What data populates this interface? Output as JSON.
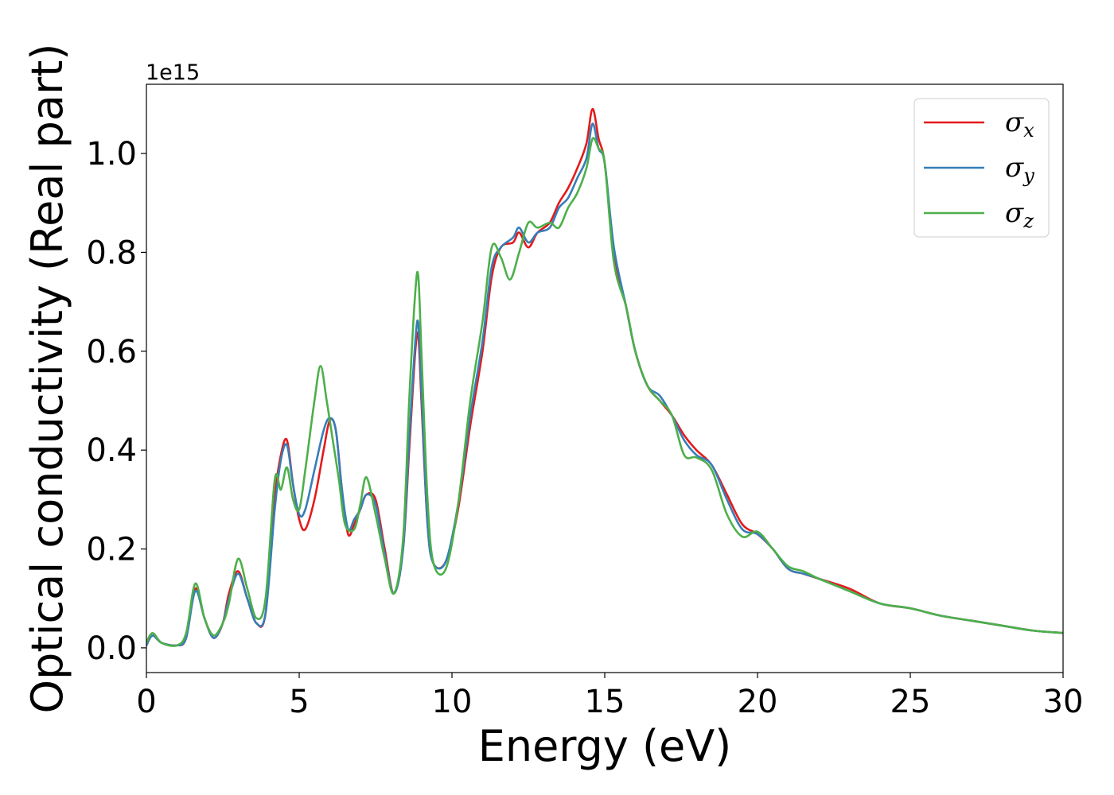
{
  "chart_data": {
    "type": "line",
    "title": "",
    "xlabel": "Energy (eV)",
    "ylabel": "Optical conductivity (Real part)",
    "y_offset_label": "1e15",
    "xlim": [
      0,
      30
    ],
    "ylim": [
      -0.05,
      1.14
    ],
    "xticks": [
      0,
      5,
      10,
      15,
      20,
      25,
      30
    ],
    "xtick_labels": [
      "0",
      "5",
      "10",
      "15",
      "20",
      "25",
      "30"
    ],
    "yticks": [
      0.0,
      0.2,
      0.4,
      0.6,
      0.8,
      1.0
    ],
    "ytick_labels": [
      "0.0",
      "0.2",
      "0.4",
      "0.6",
      "0.8",
      "1.0"
    ],
    "grid": false,
    "legend_position": "top-right",
    "series": [
      {
        "name": "σx",
        "legend_base": "σ",
        "legend_sub": "x",
        "color": "#e41a1c",
        "points": [
          [
            0,
            0.005
          ],
          [
            0.2,
            0.025
          ],
          [
            0.5,
            0.01
          ],
          [
            1.0,
            0.005
          ],
          [
            1.3,
            0.02
          ],
          [
            1.6,
            0.12
          ],
          [
            1.9,
            0.06
          ],
          [
            2.2,
            0.02
          ],
          [
            2.5,
            0.05
          ],
          [
            2.7,
            0.11
          ],
          [
            3.0,
            0.155
          ],
          [
            3.3,
            0.1
          ],
          [
            3.6,
            0.05
          ],
          [
            3.9,
            0.07
          ],
          [
            4.2,
            0.3
          ],
          [
            4.4,
            0.39
          ],
          [
            4.6,
            0.42
          ],
          [
            4.8,
            0.33
          ],
          [
            5.0,
            0.26
          ],
          [
            5.2,
            0.24
          ],
          [
            5.5,
            0.3
          ],
          [
            5.8,
            0.4
          ],
          [
            6.0,
            0.46
          ],
          [
            6.2,
            0.44
          ],
          [
            6.4,
            0.32
          ],
          [
            6.6,
            0.23
          ],
          [
            6.8,
            0.25
          ],
          [
            7.0,
            0.28
          ],
          [
            7.2,
            0.31
          ],
          [
            7.5,
            0.3
          ],
          [
            7.8,
            0.2
          ],
          [
            8.1,
            0.11
          ],
          [
            8.4,
            0.2
          ],
          [
            8.6,
            0.4
          ],
          [
            8.8,
            0.6
          ],
          [
            8.9,
            0.63
          ],
          [
            9.0,
            0.5
          ],
          [
            9.2,
            0.25
          ],
          [
            9.4,
            0.17
          ],
          [
            9.8,
            0.175
          ],
          [
            10.2,
            0.28
          ],
          [
            10.6,
            0.45
          ],
          [
            11.0,
            0.6
          ],
          [
            11.3,
            0.75
          ],
          [
            11.6,
            0.81
          ],
          [
            12.0,
            0.82
          ],
          [
            12.2,
            0.84
          ],
          [
            12.5,
            0.81
          ],
          [
            12.8,
            0.84
          ],
          [
            13.2,
            0.86
          ],
          [
            13.5,
            0.9
          ],
          [
            13.8,
            0.93
          ],
          [
            14.1,
            0.97
          ],
          [
            14.4,
            1.02
          ],
          [
            14.6,
            1.09
          ],
          [
            14.8,
            1.03
          ],
          [
            15.0,
            0.98
          ],
          [
            15.3,
            0.8
          ],
          [
            15.7,
            0.69
          ],
          [
            16.0,
            0.6
          ],
          [
            16.4,
            0.53
          ],
          [
            16.8,
            0.5
          ],
          [
            17.2,
            0.47
          ],
          [
            17.6,
            0.43
          ],
          [
            18.0,
            0.4
          ],
          [
            18.5,
            0.37
          ],
          [
            19.0,
            0.31
          ],
          [
            19.5,
            0.25
          ],
          [
            20.0,
            0.23
          ],
          [
            20.5,
            0.2
          ],
          [
            21.0,
            0.16
          ],
          [
            21.5,
            0.15
          ],
          [
            22.0,
            0.14
          ],
          [
            23.0,
            0.12
          ],
          [
            24.0,
            0.09
          ],
          [
            25.0,
            0.08
          ],
          [
            26.0,
            0.065
          ],
          [
            27.0,
            0.055
          ],
          [
            28.0,
            0.045
          ],
          [
            29.0,
            0.035
          ],
          [
            30.0,
            0.03
          ]
        ]
      },
      {
        "name": "σy",
        "legend_base": "σ",
        "legend_sub": "y",
        "color": "#377eb8",
        "points": [
          [
            0,
            0.005
          ],
          [
            0.2,
            0.025
          ],
          [
            0.5,
            0.01
          ],
          [
            1.0,
            0.005
          ],
          [
            1.3,
            0.02
          ],
          [
            1.6,
            0.115
          ],
          [
            1.9,
            0.06
          ],
          [
            2.2,
            0.02
          ],
          [
            2.5,
            0.05
          ],
          [
            2.7,
            0.1
          ],
          [
            3.0,
            0.15
          ],
          [
            3.3,
            0.1
          ],
          [
            3.6,
            0.05
          ],
          [
            3.9,
            0.07
          ],
          [
            4.2,
            0.28
          ],
          [
            4.4,
            0.38
          ],
          [
            4.6,
            0.41
          ],
          [
            4.8,
            0.33
          ],
          [
            5.0,
            0.27
          ],
          [
            5.2,
            0.28
          ],
          [
            5.5,
            0.36
          ],
          [
            5.8,
            0.44
          ],
          [
            6.0,
            0.465
          ],
          [
            6.2,
            0.44
          ],
          [
            6.4,
            0.32
          ],
          [
            6.6,
            0.24
          ],
          [
            6.8,
            0.26
          ],
          [
            7.0,
            0.28
          ],
          [
            7.2,
            0.31
          ],
          [
            7.5,
            0.29
          ],
          [
            7.8,
            0.19
          ],
          [
            8.1,
            0.11
          ],
          [
            8.4,
            0.2
          ],
          [
            8.6,
            0.42
          ],
          [
            8.8,
            0.62
          ],
          [
            8.9,
            0.655
          ],
          [
            9.0,
            0.52
          ],
          [
            9.2,
            0.25
          ],
          [
            9.4,
            0.17
          ],
          [
            9.8,
            0.175
          ],
          [
            10.2,
            0.29
          ],
          [
            10.6,
            0.47
          ],
          [
            11.0,
            0.62
          ],
          [
            11.3,
            0.77
          ],
          [
            11.6,
            0.81
          ],
          [
            12.0,
            0.83
          ],
          [
            12.2,
            0.85
          ],
          [
            12.5,
            0.82
          ],
          [
            12.8,
            0.84
          ],
          [
            13.2,
            0.85
          ],
          [
            13.5,
            0.89
          ],
          [
            13.8,
            0.91
          ],
          [
            14.1,
            0.95
          ],
          [
            14.4,
            0.99
          ],
          [
            14.6,
            1.06
          ],
          [
            14.8,
            1.01
          ],
          [
            15.0,
            0.98
          ],
          [
            15.3,
            0.81
          ],
          [
            15.7,
            0.69
          ],
          [
            16.0,
            0.6
          ],
          [
            16.4,
            0.53
          ],
          [
            16.8,
            0.51
          ],
          [
            17.2,
            0.47
          ],
          [
            17.6,
            0.42
          ],
          [
            18.0,
            0.39
          ],
          [
            18.5,
            0.37
          ],
          [
            19.0,
            0.3
          ],
          [
            19.5,
            0.24
          ],
          [
            20.0,
            0.23
          ],
          [
            20.5,
            0.2
          ],
          [
            21.0,
            0.16
          ],
          [
            21.5,
            0.15
          ],
          [
            22.0,
            0.14
          ],
          [
            23.0,
            0.115
          ],
          [
            24.0,
            0.09
          ],
          [
            25.0,
            0.08
          ],
          [
            26.0,
            0.065
          ],
          [
            27.0,
            0.055
          ],
          [
            28.0,
            0.045
          ],
          [
            29.0,
            0.035
          ],
          [
            30.0,
            0.03
          ]
        ]
      },
      {
        "name": "σz",
        "legend_base": "σ",
        "legend_sub": "z",
        "color": "#4daf4a",
        "points": [
          [
            0,
            0.01
          ],
          [
            0.2,
            0.03
          ],
          [
            0.5,
            0.01
          ],
          [
            1.0,
            0.005
          ],
          [
            1.3,
            0.03
          ],
          [
            1.6,
            0.13
          ],
          [
            1.9,
            0.06
          ],
          [
            2.2,
            0.025
          ],
          [
            2.5,
            0.05
          ],
          [
            2.7,
            0.09
          ],
          [
            3.0,
            0.18
          ],
          [
            3.3,
            0.12
          ],
          [
            3.6,
            0.06
          ],
          [
            3.9,
            0.1
          ],
          [
            4.2,
            0.34
          ],
          [
            4.4,
            0.32
          ],
          [
            4.6,
            0.365
          ],
          [
            4.8,
            0.3
          ],
          [
            5.0,
            0.28
          ],
          [
            5.2,
            0.36
          ],
          [
            5.5,
            0.5
          ],
          [
            5.7,
            0.57
          ],
          [
            5.9,
            0.5
          ],
          [
            6.1,
            0.42
          ],
          [
            6.3,
            0.34
          ],
          [
            6.5,
            0.25
          ],
          [
            6.8,
            0.24
          ],
          [
            7.0,
            0.29
          ],
          [
            7.2,
            0.345
          ],
          [
            7.5,
            0.27
          ],
          [
            7.8,
            0.18
          ],
          [
            8.1,
            0.11
          ],
          [
            8.4,
            0.22
          ],
          [
            8.6,
            0.5
          ],
          [
            8.8,
            0.72
          ],
          [
            8.9,
            0.75
          ],
          [
            9.0,
            0.6
          ],
          [
            9.2,
            0.3
          ],
          [
            9.4,
            0.17
          ],
          [
            9.8,
            0.16
          ],
          [
            10.2,
            0.29
          ],
          [
            10.6,
            0.5
          ],
          [
            11.0,
            0.66
          ],
          [
            11.3,
            0.81
          ],
          [
            11.6,
            0.79
          ],
          [
            11.9,
            0.745
          ],
          [
            12.2,
            0.8
          ],
          [
            12.5,
            0.86
          ],
          [
            12.8,
            0.85
          ],
          [
            13.2,
            0.86
          ],
          [
            13.5,
            0.85
          ],
          [
            13.8,
            0.89
          ],
          [
            14.1,
            0.92
          ],
          [
            14.4,
            0.97
          ],
          [
            14.6,
            1.03
          ],
          [
            14.8,
            1.01
          ],
          [
            15.0,
            0.98
          ],
          [
            15.3,
            0.78
          ],
          [
            15.7,
            0.69
          ],
          [
            16.0,
            0.6
          ],
          [
            16.4,
            0.53
          ],
          [
            16.8,
            0.5
          ],
          [
            17.2,
            0.47
          ],
          [
            17.6,
            0.39
          ],
          [
            18.0,
            0.385
          ],
          [
            18.5,
            0.36
          ],
          [
            19.0,
            0.27
          ],
          [
            19.5,
            0.225
          ],
          [
            20.0,
            0.235
          ],
          [
            20.5,
            0.2
          ],
          [
            21.0,
            0.165
          ],
          [
            21.5,
            0.155
          ],
          [
            22.0,
            0.14
          ],
          [
            23.0,
            0.115
          ],
          [
            24.0,
            0.09
          ],
          [
            25.0,
            0.08
          ],
          [
            26.0,
            0.065
          ],
          [
            27.0,
            0.055
          ],
          [
            28.0,
            0.045
          ],
          [
            29.0,
            0.035
          ],
          [
            30.0,
            0.03
          ]
        ]
      }
    ]
  }
}
